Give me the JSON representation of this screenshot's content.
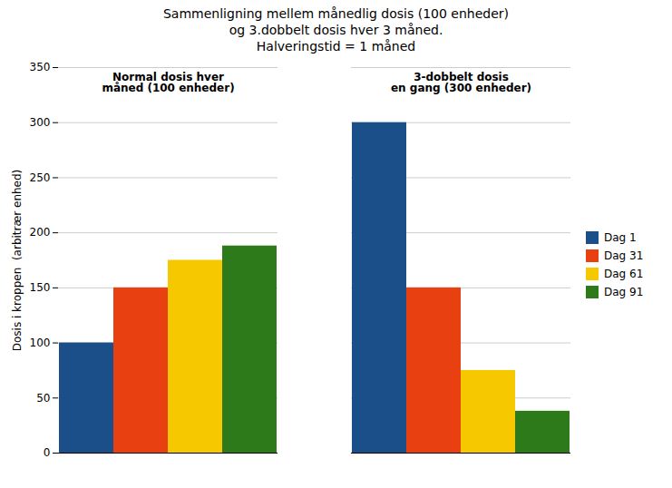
{
  "chart_data": {
    "type": "bar",
    "title": "Sammenligning mellem månedlig dosis (100 enheder)\nog 3.dobbelt dosis hver 3 måned.\nHalveringstid = 1 måned",
    "ylabel": "Dosis i kroppen  (arbitrær enhed)",
    "categories": [
      "Normal dosis hver\nmåned (100 enheder)",
      "3-dobbelt dosis\nen gang (300 enheder)"
    ],
    "series": [
      {
        "name": "Dag 1",
        "color": "#1a4f8a",
        "values": [
          100,
          300
        ]
      },
      {
        "name": "Dag 31",
        "color": "#e84010",
        "values": [
          150,
          150
        ]
      },
      {
        "name": "Dag 61",
        "color": "#f5c800",
        "values": [
          175,
          75
        ]
      },
      {
        "name": "Dag 91",
        "color": "#2d7a1a",
        "values": [
          188,
          38
        ]
      }
    ],
    "ylim": [
      0,
      350
    ],
    "yticks": [
      0,
      50,
      100,
      150,
      200,
      250,
      300,
      350
    ],
    "grid": true,
    "legend": "right",
    "tick_labels": "y"
  }
}
